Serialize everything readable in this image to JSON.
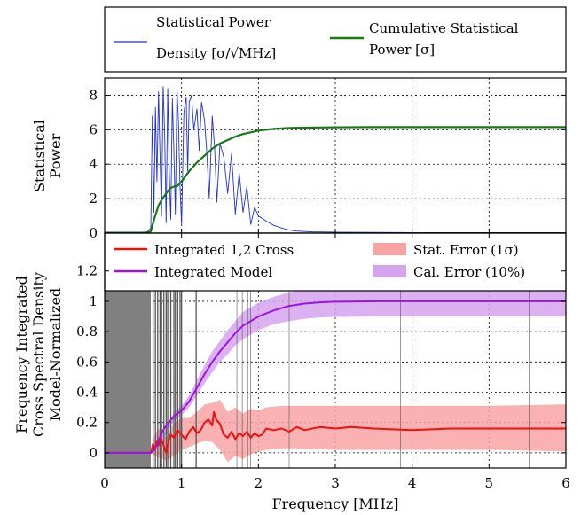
{
  "chart_data": [
    {
      "panel": "top",
      "type": "line",
      "ylabel": [
        "Statistical",
        "Power"
      ],
      "xlim": [
        0,
        6
      ],
      "ylim": [
        0,
        9
      ],
      "yticks": [
        0,
        2,
        4,
        6,
        8
      ],
      "grid": true,
      "legend": {
        "placement": "above",
        "entries": [
          {
            "label_lines": [
              "Statistical Power",
              "Density [σ/√MHz]"
            ],
            "color": "#1f2fd6"
          },
          {
            "label_lines": [
              "Cumulative Statistical",
              "Power [σ]"
            ],
            "color": "#157a15"
          }
        ]
      },
      "series": [
        {
          "name": "Statistical Power Density [σ/√MHz]",
          "color": "#1f2fd6",
          "x": [
            0,
            0.55,
            0.6,
            0.62,
            0.64,
            0.66,
            0.68,
            0.7,
            0.72,
            0.74,
            0.76,
            0.78,
            0.8,
            0.82,
            0.84,
            0.86,
            0.88,
            0.9,
            0.92,
            0.94,
            0.96,
            0.98,
            1.0,
            1.03,
            1.06,
            1.08,
            1.1,
            1.13,
            1.16,
            1.2,
            1.23,
            1.26,
            1.3,
            1.33,
            1.36,
            1.4,
            1.43,
            1.46,
            1.5,
            1.55,
            1.6,
            1.65,
            1.7,
            1.75,
            1.8,
            1.85,
            1.9,
            1.95,
            2.0,
            2.1,
            2.2,
            2.3,
            2.4,
            2.5,
            2.7,
            3.0,
            3.5,
            4.0,
            5.0,
            6.0
          ],
          "y": [
            0.05,
            0.05,
            0.3,
            6.8,
            1.2,
            7.3,
            3.0,
            8.2,
            4.5,
            1.0,
            8.5,
            5.8,
            0.6,
            8.4,
            3.5,
            0.8,
            7.8,
            4.8,
            1.1,
            8.4,
            6.4,
            2.8,
            0.5,
            7.0,
            7.9,
            3.6,
            7.6,
            8.0,
            6.0,
            7.2,
            4.8,
            7.6,
            6.5,
            4.5,
            2.0,
            6.8,
            5.0,
            1.8,
            5.2,
            4.4,
            2.3,
            4.6,
            1.1,
            3.5,
            1.2,
            2.7,
            0.5,
            1.5,
            1.0,
            0.7,
            0.45,
            0.3,
            0.18,
            0.12,
            0.07,
            0.05,
            0.04,
            0.03,
            0.03,
            0.03
          ]
        },
        {
          "name": "Cumulative Statistical Power [σ]",
          "color": "#157a15",
          "x": [
            0,
            0.5,
            0.6,
            0.65,
            0.7,
            0.75,
            0.8,
            0.85,
            0.9,
            0.95,
            1.0,
            1.1,
            1.2,
            1.3,
            1.4,
            1.5,
            1.6,
            1.7,
            1.8,
            1.9,
            2.0,
            2.2,
            2.4,
            2.6,
            2.8,
            3.0,
            3.5,
            4.0,
            5.0,
            6.0
          ],
          "y": [
            0,
            0,
            0.1,
            0.9,
            1.6,
            2.0,
            2.3,
            2.6,
            2.7,
            2.75,
            3.0,
            3.6,
            4.1,
            4.5,
            4.9,
            5.2,
            5.4,
            5.6,
            5.75,
            5.85,
            5.95,
            6.05,
            6.1,
            6.12,
            6.13,
            6.14,
            6.15,
            6.15,
            6.15,
            6.15
          ]
        }
      ]
    },
    {
      "panel": "bottom",
      "type": "line",
      "xlabel": "Frequency [MHz]",
      "ylabel": [
        "Frequency Integrated",
        "Cross Spectral Density",
        "Model-Normalized"
      ],
      "xlim": [
        0,
        6
      ],
      "ylim": [
        -0.1,
        1.45
      ],
      "xticks": [
        0,
        1,
        2,
        3,
        4,
        5,
        6
      ],
      "yticks": [
        0.0,
        0.2,
        0.4,
        0.6,
        0.8,
        1.0,
        1.2
      ],
      "grid": true,
      "masked_region": {
        "x": [
          0,
          0.6
        ],
        "color": "#808080"
      },
      "flagged_channels": [
        0.63,
        0.66,
        0.69,
        0.72,
        0.74,
        0.77,
        0.8,
        0.82,
        0.86,
        0.9,
        0.92,
        0.95,
        0.98,
        1.0,
        1.19,
        1.72,
        1.79,
        1.86,
        1.9,
        2.4,
        3.85,
        5.52
      ],
      "legend": {
        "placement": "top",
        "entries": [
          {
            "label": "Integrated 1,2 Cross",
            "color": "#ee1111",
            "kind": "line"
          },
          {
            "label": "Integrated Model",
            "color": "#9b14e0",
            "kind": "line"
          },
          {
            "label": "Stat. Error (1σ)",
            "color": "#f8a3a3",
            "kind": "patch"
          },
          {
            "label": "Cal. Error (10%)",
            "color": "#d6a3ee",
            "kind": "patch"
          }
        ]
      },
      "series": [
        {
          "name": "Integrated 1,2 Cross",
          "color": "#ee1111",
          "x": [
            0,
            0.55,
            0.6,
            0.63,
            0.65,
            0.68,
            0.7,
            0.73,
            0.76,
            0.8,
            0.83,
            0.86,
            0.9,
            0.95,
            1.0,
            1.05,
            1.1,
            1.15,
            1.2,
            1.25,
            1.3,
            1.35,
            1.4,
            1.42,
            1.45,
            1.5,
            1.55,
            1.6,
            1.65,
            1.7,
            1.75,
            1.8,
            1.85,
            1.9,
            1.95,
            2.0,
            2.05,
            2.1,
            2.2,
            2.3,
            2.4,
            2.5,
            2.6,
            2.8,
            3.0,
            3.2,
            3.5,
            4.0,
            4.5,
            5.0,
            5.5,
            6.0
          ],
          "y": [
            0.0,
            0.0,
            0.0,
            0.06,
            0.02,
            0.08,
            0.05,
            0.1,
            0.06,
            0.0,
            0.08,
            0.12,
            0.1,
            0.15,
            0.12,
            0.09,
            0.14,
            0.17,
            0.13,
            0.15,
            0.2,
            0.22,
            0.18,
            0.27,
            0.22,
            0.19,
            0.12,
            0.1,
            0.14,
            0.09,
            0.13,
            0.11,
            0.14,
            0.1,
            0.13,
            0.11,
            0.12,
            0.16,
            0.15,
            0.16,
            0.14,
            0.17,
            0.15,
            0.17,
            0.16,
            0.17,
            0.16,
            0.15,
            0.16,
            0.16,
            0.16,
            0.16
          ]
        },
        {
          "name": "Integrated Model",
          "color": "#9b14e0",
          "x": [
            0,
            0.6,
            0.65,
            0.7,
            0.75,
            0.8,
            0.85,
            0.9,
            0.95,
            1.0,
            1.1,
            1.2,
            1.3,
            1.4,
            1.5,
            1.6,
            1.7,
            1.8,
            1.9,
            2.0,
            2.2,
            2.4,
            2.6,
            2.8,
            3.0,
            3.3,
            3.6,
            4.0,
            5.0,
            6.0
          ],
          "y": [
            0.0,
            0.0,
            0.02,
            0.08,
            0.14,
            0.18,
            0.21,
            0.24,
            0.26,
            0.28,
            0.34,
            0.43,
            0.52,
            0.6,
            0.67,
            0.73,
            0.79,
            0.84,
            0.87,
            0.9,
            0.94,
            0.97,
            0.985,
            0.993,
            0.997,
            0.999,
            1.0,
            1.0,
            1.0,
            1.0
          ]
        }
      ],
      "bands": [
        {
          "name": "Stat. Error (1σ)",
          "color": "#f8a3a3",
          "x": [
            0.6,
            0.65,
            0.7,
            0.8,
            0.9,
            1.0,
            1.1,
            1.2,
            1.3,
            1.4,
            1.5,
            1.6,
            1.7,
            1.8,
            1.9,
            2.0,
            2.1,
            2.3,
            2.5,
            3.0,
            4.0,
            5.0,
            6.0
          ],
          "lower": [
            0.0,
            -0.02,
            -0.03,
            -0.05,
            -0.02,
            0.02,
            0.04,
            0.06,
            0.08,
            0.07,
            0.02,
            -0.06,
            -0.02,
            -0.04,
            -0.01,
            0.01,
            0.02,
            0.03,
            0.03,
            0.02,
            0.02,
            0.02,
            0.01
          ],
          "upper": [
            0.0,
            0.12,
            0.16,
            0.1,
            0.2,
            0.23,
            0.23,
            0.27,
            0.32,
            0.33,
            0.35,
            0.27,
            0.3,
            0.26,
            0.29,
            0.28,
            0.3,
            0.31,
            0.31,
            0.31,
            0.31,
            0.31,
            0.32
          ]
        },
        {
          "name": "Cal. Error (10%)",
          "color": "#d6a3ee",
          "x": [
            0.6,
            0.7,
            0.8,
            0.9,
            1.0,
            1.1,
            1.2,
            1.3,
            1.4,
            1.5,
            1.6,
            1.7,
            1.8,
            1.9,
            2.0,
            2.2,
            2.4,
            2.6,
            2.8,
            3.0,
            3.3,
            3.6,
            4.0,
            5.0,
            6.0
          ],
          "lower": [
            0.0,
            0.07,
            0.12,
            0.21,
            0.25,
            0.3,
            0.38,
            0.46,
            0.53,
            0.6,
            0.65,
            0.71,
            0.75,
            0.78,
            0.81,
            0.85,
            0.87,
            0.885,
            0.894,
            0.897,
            0.899,
            0.9,
            0.9,
            0.9,
            0.9
          ],
          "upper": [
            0.0,
            0.09,
            0.16,
            0.27,
            0.31,
            0.38,
            0.48,
            0.58,
            0.67,
            0.74,
            0.81,
            0.87,
            0.93,
            0.96,
            0.99,
            1.03,
            1.06,
            1.08,
            1.09,
            1.095,
            1.099,
            1.1,
            1.1,
            1.1,
            1.1
          ]
        }
      ]
    }
  ]
}
